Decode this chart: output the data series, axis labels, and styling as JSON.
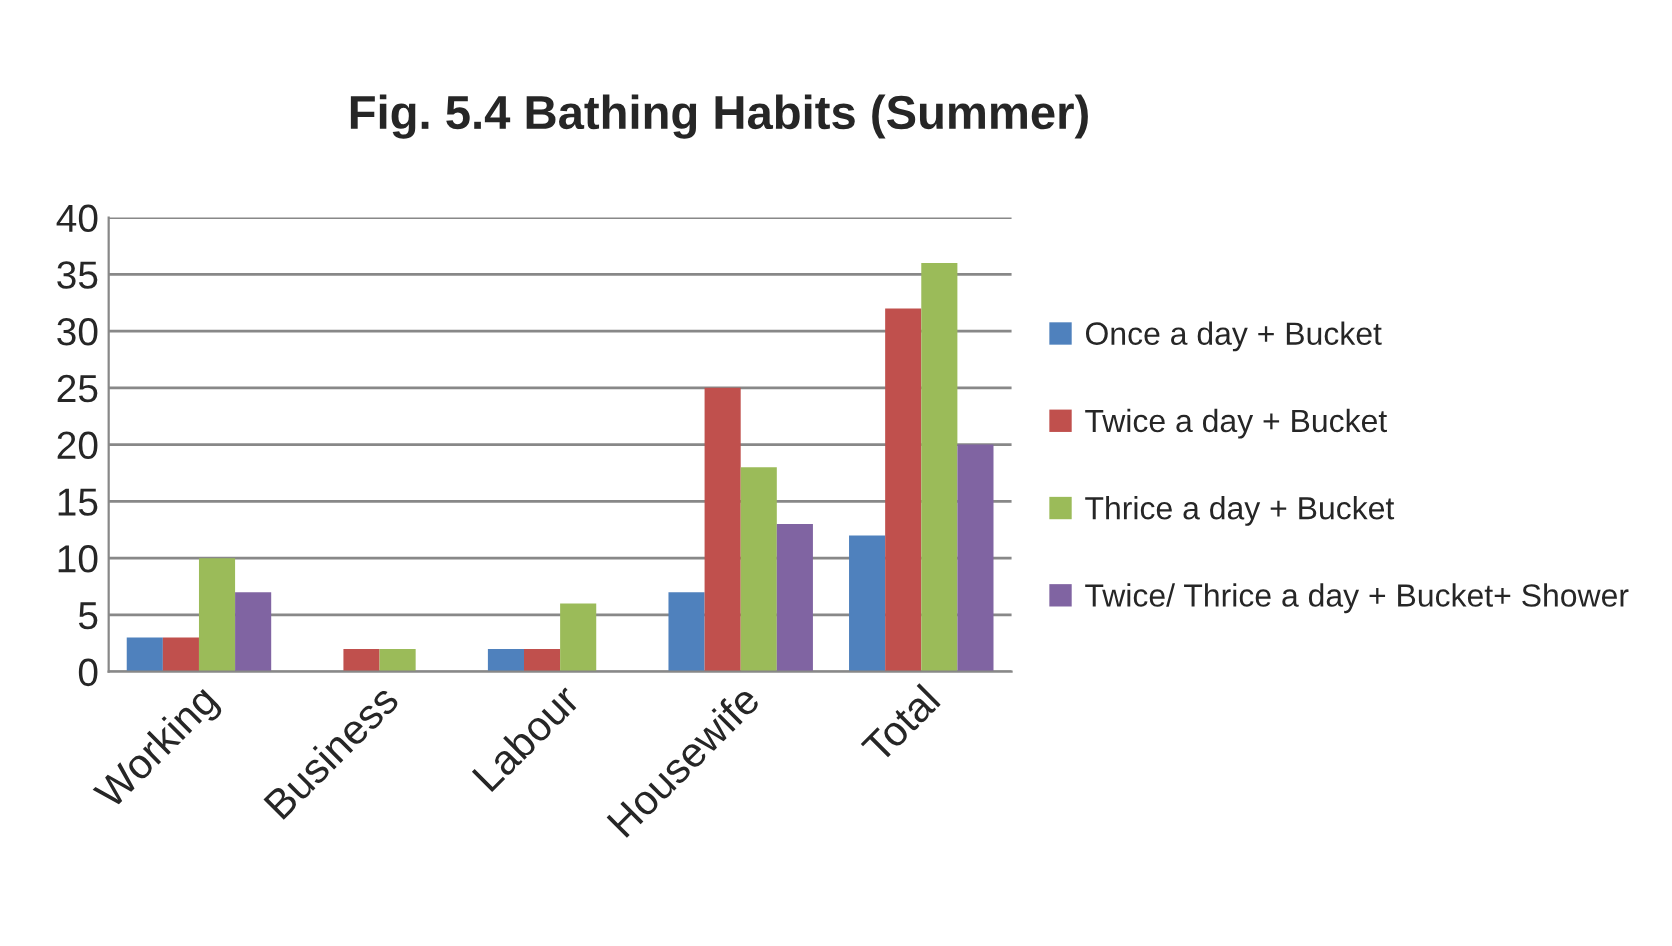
{
  "chart_data": {
    "type": "bar",
    "title": "Fig. 5.4 Bathing Habits (Summer)",
    "categories": [
      "Working",
      "Business",
      "Labour",
      "Housewife",
      "Total"
    ],
    "series": [
      {
        "name": "Once a day + Bucket",
        "color": "#4f81bd",
        "values": [
          3,
          null,
          2,
          7,
          12
        ]
      },
      {
        "name": "Twice a day + Bucket",
        "color": "#c0504d",
        "values": [
          3,
          2,
          2,
          25,
          32
        ]
      },
      {
        "name": "Thrice a day + Bucket",
        "color": "#9bbb59",
        "values": [
          10,
          2,
          6,
          18,
          36
        ]
      },
      {
        "name": "Twice/ Thrice a day + Bucket+ Shower",
        "color": "#8064a2",
        "values": [
          7,
          null,
          null,
          13,
          20
        ]
      }
    ],
    "ylim": [
      0,
      40
    ],
    "yticks": [
      0,
      5,
      10,
      15,
      20,
      25,
      30,
      35,
      40
    ],
    "grid": "y",
    "legend": "right"
  }
}
